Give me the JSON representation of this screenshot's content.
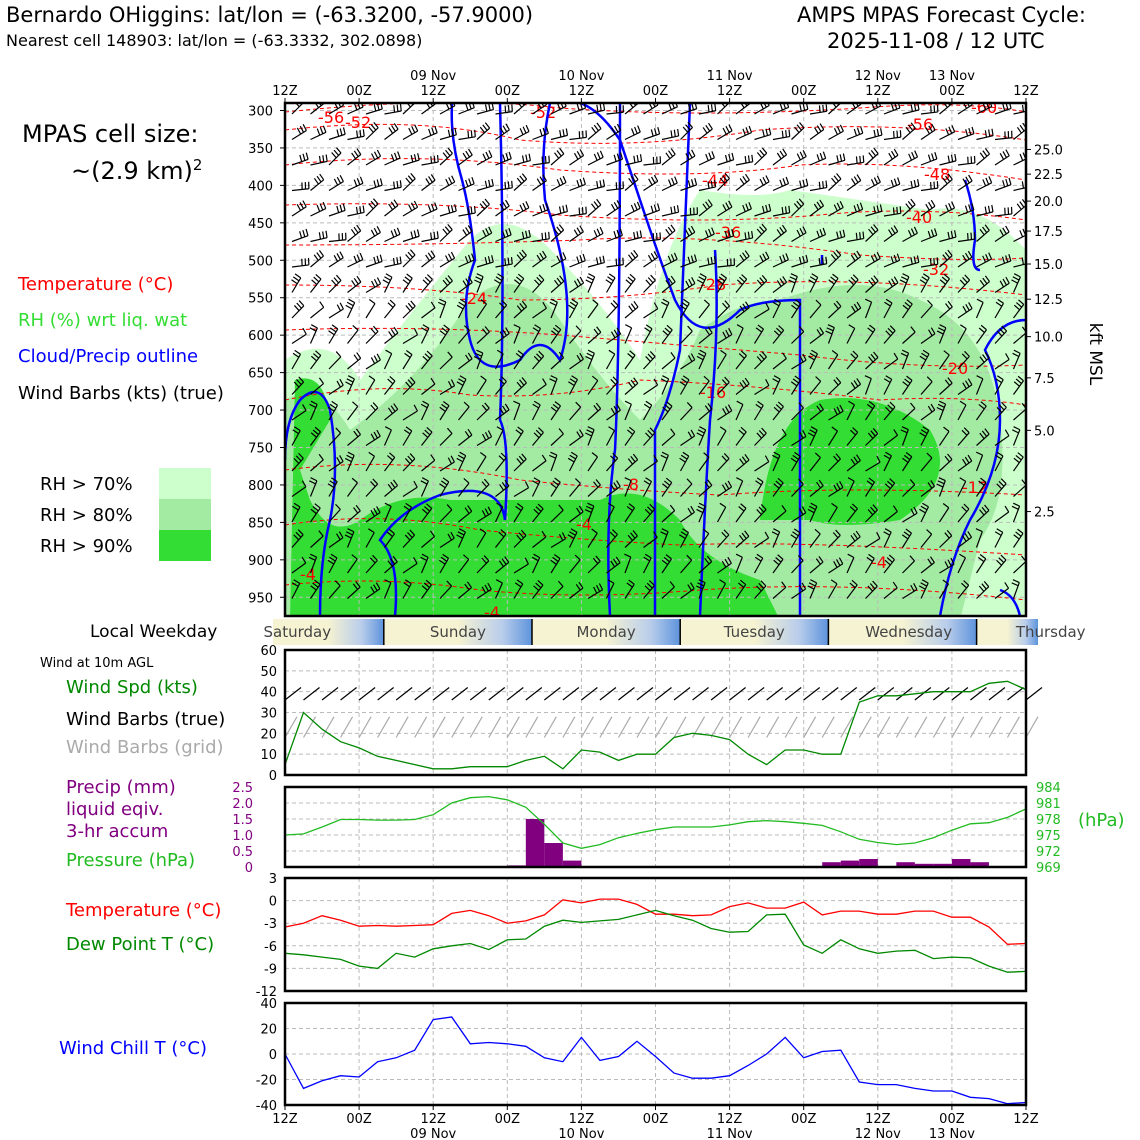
{
  "header": {
    "site_line": "Bernardo OHiggins: lat/lon = (-63.3200, -57.9000)",
    "cell_line": "Nearest cell 148903: lat/lon = (-63.3332, 302.0898)",
    "cycle_line1": "AMPS MPAS Forecast Cycle:",
    "cycle_line2": "2025-11-08 / 12 UTC"
  },
  "left_panel": {
    "cell_size_line1": "MPAS cell size:",
    "cell_size_line2": "~(2.9 km)",
    "cell_size_sup": "2",
    "legend_temperature": "Temperature (°C)",
    "legend_rh": "RH (%) wrt liq. wat",
    "legend_cloud": "Cloud/Precip outline",
    "legend_wind": "Wind Barbs (kts) (true)",
    "rh_levels": [
      "RH > 70%",
      "RH > 80%",
      "RH > 90%"
    ],
    "weekday_label": "Local Weekday",
    "wind10_title": "Wind at 10m AGL",
    "wind_spd_label": "Wind Spd (kts)",
    "wind_barbs_true": "Wind Barbs (true)",
    "wind_barbs_grid": "Wind Barbs (grid)",
    "precip_line1": "Precip (mm)",
    "precip_line2": "liquid eqiv.",
    "precip_line3": "3-hr accum",
    "pressure_label": "Pressure (hPa)",
    "temp_label": "Temperature (°C)",
    "dew_label": "Dew Point T (°C)",
    "chill_label": "Wind Chill T (°C)"
  },
  "colors": {
    "temperature": "#ff0000",
    "rh_text": "#33dd33",
    "rh70": "#ccffcc",
    "rh80": "#a3eba3",
    "rh90": "#33dd33",
    "cloud": "#0000ff",
    "wind_speed": "#008800",
    "wind_grid": "#aaaaaa",
    "precip": "#800080",
    "pressure": "#22bb22",
    "dewpoint": "#008800",
    "windchill": "#0000ff"
  },
  "chart_data": [
    {
      "type": "heatmap",
      "panel": "time-height cross section",
      "top_time_labels": [
        "12Z",
        "00Z",
        "12Z",
        "00Z",
        "12Z",
        "00Z",
        "12Z",
        "00Z",
        "12Z",
        "00Z",
        "12Z"
      ],
      "top_date_labels": [
        "09 Nov",
        "10 Nov",
        "11 Nov",
        "12 Nov",
        "13 Nov"
      ],
      "pressure_ticks": [
        "300",
        "350",
        "400",
        "450",
        "500",
        "550",
        "600",
        "650",
        "700",
        "750",
        "800",
        "850",
        "900",
        "950"
      ],
      "kft_ticks": [
        "25.0",
        "22.5",
        "20.0",
        "17.5",
        "15.0",
        "12.5",
        "10.0",
        "7.5",
        "5.0",
        "2.5"
      ],
      "right_axis_label": "kft MSL",
      "temperature_contour_labels": [
        "-56",
        "-52",
        "-52",
        "-56",
        "-60",
        "-44",
        "-48",
        "-40",
        "-36",
        "-32",
        "-24",
        "-28",
        "-20",
        "-16",
        "-8",
        "-12",
        "-4",
        "-4",
        "-4",
        "-4"
      ]
    },
    {
      "type": "table",
      "panel": "local weekday strip",
      "labels": [
        "Saturday",
        "Sunday",
        "Monday",
        "Tuesday",
        "Wednesday",
        "Thursday"
      ]
    },
    {
      "type": "line",
      "panel": "wind at 10m",
      "ylim": [
        0,
        60
      ],
      "yticks": [
        "0",
        "10",
        "20",
        "30",
        "40",
        "50",
        "60"
      ],
      "x_hours": [
        0,
        3,
        6,
        9,
        12,
        15,
        18,
        21,
        24,
        27,
        30,
        33,
        36,
        39,
        42,
        45,
        48,
        51,
        54,
        57,
        60,
        63,
        66,
        69,
        72,
        75,
        78,
        81,
        84,
        87,
        90,
        93,
        96,
        99,
        102,
        105,
        108,
        111,
        114,
        117,
        120
      ],
      "wind_speed_kts": [
        5,
        30,
        22,
        16,
        13,
        9,
        7,
        5,
        3,
        3,
        4,
        4,
        4,
        7,
        9,
        3,
        12,
        11,
        7,
        10,
        10,
        18,
        20,
        19,
        17,
        10,
        5,
        12,
        12,
        10,
        10,
        35,
        38,
        38,
        39,
        40,
        40,
        40,
        44,
        45,
        41
      ]
    },
    {
      "type": "bar",
      "panel": "precip and pressure",
      "precip_ylim": [
        0,
        2.5
      ],
      "precip_yticks": [
        "0",
        "0.5",
        "1.0",
        "1.5",
        "2.0",
        "2.5"
      ],
      "pressure_ylim": [
        969,
        984
      ],
      "pressure_yticks": [
        "969",
        "972",
        "975",
        "978",
        "981",
        "984"
      ],
      "right_unit_label": "(hPa)",
      "precip_bars": [
        {
          "start_hr": 36,
          "end_hr": 39,
          "mm": 0.05
        },
        {
          "start_hr": 39,
          "end_hr": 42,
          "mm": 1.5
        },
        {
          "start_hr": 42,
          "end_hr": 45,
          "mm": 0.75
        },
        {
          "start_hr": 45,
          "end_hr": 48,
          "mm": 0.2
        },
        {
          "start_hr": 87,
          "end_hr": 90,
          "mm": 0.15
        },
        {
          "start_hr": 90,
          "end_hr": 93,
          "mm": 0.2
        },
        {
          "start_hr": 93,
          "end_hr": 96,
          "mm": 0.25
        },
        {
          "start_hr": 99,
          "end_hr": 102,
          "mm": 0.15
        },
        {
          "start_hr": 102,
          "end_hr": 105,
          "mm": 0.1
        },
        {
          "start_hr": 105,
          "end_hr": 108,
          "mm": 0.1
        },
        {
          "start_hr": 108,
          "end_hr": 111,
          "mm": 0.25
        },
        {
          "start_hr": 111,
          "end_hr": 114,
          "mm": 0.15
        }
      ],
      "pressure_x": [
        0,
        3,
        6,
        9,
        12,
        15,
        18,
        21,
        24,
        27,
        30,
        33,
        36,
        39,
        42,
        45,
        48,
        51,
        54,
        57,
        60,
        63,
        66,
        69,
        72,
        75,
        78,
        81,
        84,
        87,
        90,
        93,
        96,
        99,
        102,
        105,
        108,
        111,
        114,
        117,
        120
      ],
      "pressure_hpa": [
        975,
        975.2,
        976.5,
        977.9,
        977.9,
        977.8,
        977.8,
        977.9,
        978.8,
        981,
        982,
        982.2,
        981.6,
        980.2,
        977,
        973.5,
        972.5,
        973.2,
        974.5,
        975.3,
        976,
        976.5,
        976.5,
        976.5,
        976.9,
        977.5,
        977.7,
        977.5,
        977.2,
        976.8,
        975.6,
        974.2,
        973.6,
        973.2,
        973.5,
        974.5,
        975.9,
        977.1,
        977.3,
        978.3,
        979.9
      ]
    },
    {
      "type": "line",
      "panel": "temperature and dew point",
      "ylim": [
        -12,
        3
      ],
      "yticks": [
        "3",
        "0",
        "-3",
        "-6",
        "-9",
        "-12"
      ],
      "x_hours": [
        0,
        3,
        6,
        9,
        12,
        15,
        18,
        21,
        24,
        27,
        30,
        33,
        36,
        39,
        42,
        45,
        48,
        51,
        54,
        57,
        60,
        63,
        66,
        69,
        72,
        75,
        78,
        81,
        84,
        87,
        90,
        93,
        96,
        99,
        102,
        105,
        108,
        111,
        114,
        117,
        120
      ],
      "series": [
        {
          "name": "Temperature (°C)",
          "values": [
            -3.5,
            -3,
            -2,
            -2.6,
            -3.4,
            -3.3,
            -3.4,
            -3.3,
            -3.2,
            -1.7,
            -1.3,
            -2,
            -3,
            -2.7,
            -1.9,
            0.1,
            -0.3,
            0.2,
            0.2,
            -0.5,
            -1.8,
            -1.8,
            -2,
            -1.9,
            -0.8,
            -0.3,
            -1,
            -1,
            -0.2,
            -1.9,
            -1.4,
            -1.4,
            -1.8,
            -1.8,
            -1.4,
            -1.4,
            -2.2,
            -2.2,
            -3.5,
            -5.8,
            -5.7
          ]
        },
        {
          "name": "Dew Point T (°C)",
          "values": [
            -7,
            -7.2,
            -7.5,
            -7.8,
            -8.7,
            -9,
            -7,
            -7.5,
            -6.4,
            -6,
            -5.7,
            -6.5,
            -5.2,
            -5.1,
            -3.4,
            -2.6,
            -2.9,
            -2.7,
            -2.5,
            -1.9,
            -1.3,
            -2,
            -2.6,
            -3.7,
            -4.2,
            -4.1,
            -1.9,
            -1.8,
            -5.9,
            -7,
            -5.2,
            -6.4,
            -7,
            -6.7,
            -6.6,
            -7.7,
            -7.5,
            -7.6,
            -8.7,
            -9.5,
            -9.4
          ]
        }
      ]
    },
    {
      "type": "line",
      "panel": "wind chill",
      "ylim": [
        -40,
        40
      ],
      "yticks": [
        "40",
        "20",
        "0",
        "-20",
        "-40"
      ],
      "x_hours": [
        0,
        3,
        6,
        9,
        12,
        15,
        18,
        21,
        24,
        27,
        30,
        33,
        36,
        39,
        42,
        45,
        48,
        51,
        54,
        57,
        60,
        63,
        66,
        69,
        72,
        75,
        78,
        81,
        84,
        87,
        90,
        93,
        96,
        99,
        102,
        105,
        108,
        111,
        114,
        117,
        120
      ],
      "series": [
        {
          "name": "Wind Chill T (°C)",
          "values": [
            0,
            -27,
            -21,
            -17,
            -18,
            -6,
            -3,
            3,
            27,
            29,
            8,
            9,
            8,
            6,
            -3,
            -6,
            13,
            -5,
            -2,
            10,
            -2,
            -15,
            -19,
            -19,
            -17,
            -9,
            0,
            13,
            -3,
            2,
            3,
            -22,
            -24,
            -24,
            -27,
            -29,
            -29,
            -34,
            -35,
            -39,
            -38
          ]
        }
      ]
    }
  ],
  "bottom_axis": {
    "time_labels": [
      "12Z",
      "00Z",
      "12Z",
      "00Z",
      "12Z",
      "00Z",
      "12Z",
      "00Z",
      "12Z",
      "00Z",
      "12Z"
    ],
    "date_labels": [
      "09 Nov",
      "10 Nov",
      "11 Nov",
      "12 Nov",
      "13 Nov"
    ]
  }
}
